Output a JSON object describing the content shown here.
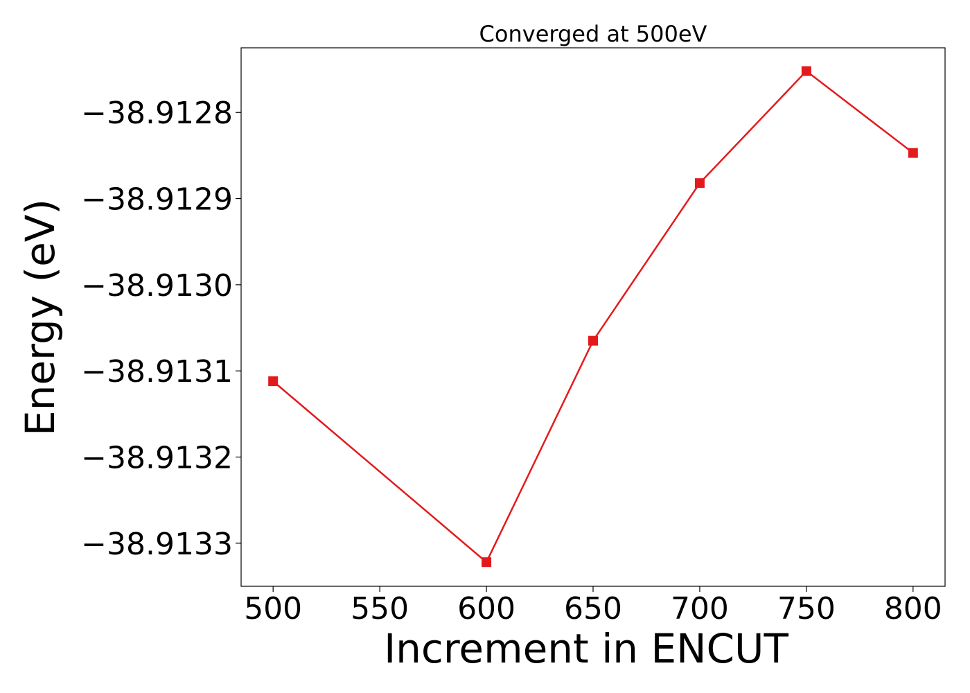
{
  "chart_data": {
    "type": "line",
    "title": "Converged at 500eV",
    "xlabel": "Increment in ENCUT",
    "ylabel": "Energy (eV)",
    "x": [
      500,
      600,
      650,
      700,
      750,
      800
    ],
    "series": [
      {
        "values": [
          -38.913112,
          -38.913322,
          -38.913065,
          -38.912882,
          -38.912752,
          -38.912847
        ],
        "color": "#e31a1c",
        "marker": "square"
      }
    ],
    "xticks": [
      500,
      550,
      600,
      650,
      700,
      750,
      800
    ],
    "xtick_labels": [
      "500",
      "550",
      "600",
      "650",
      "700",
      "750",
      "800"
    ],
    "yticks": [
      -38.9128,
      -38.9129,
      -38.913,
      -38.9131,
      -38.9132,
      -38.9133
    ],
    "ytick_labels": [
      "−38.9128",
      "−38.9129",
      "−38.9130",
      "−38.9131",
      "−38.9132",
      "−38.9133"
    ],
    "xlim": [
      485,
      815
    ],
    "ylim": [
      -38.91335,
      -38.912725
    ],
    "grid": false
  }
}
